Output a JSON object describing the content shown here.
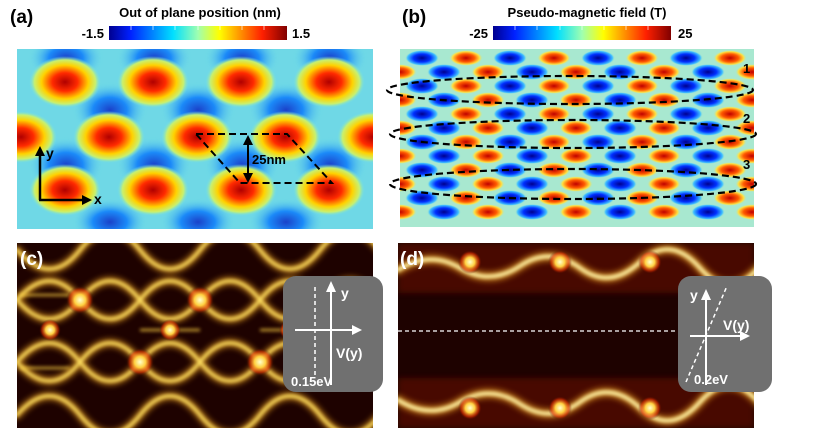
{
  "panels": {
    "a": {
      "label": "(a)",
      "colorbar_title": "Out of plane position (nm)",
      "cbar_min": "-1.5",
      "cbar_max": "1.5",
      "axis_y": "y",
      "axis_x": "x",
      "scale_label": "25nm"
    },
    "b": {
      "label": "(b)",
      "colorbar_title": "Pseudo-magnetic  field (T)",
      "cbar_min": "-25",
      "cbar_max": "25",
      "strips": [
        "1",
        "2",
        "3"
      ]
    },
    "c": {
      "label": "(c)",
      "inset_y": "y",
      "inset_v": "V(y)",
      "inset_energy": "0.15eV"
    },
    "d": {
      "label": "(d)",
      "inset_y": "y",
      "inset_v": "V(y)",
      "inset_energy": "0.2eV"
    }
  },
  "colors": {
    "jet_low": "#0b1fd6",
    "jet_mid": "#6fe0e8",
    "jet_high": "#d0101a",
    "hot_dark": "#1e0200",
    "hot_bright": "#fff3a0",
    "inset_bg": "#6e6e6e"
  }
}
